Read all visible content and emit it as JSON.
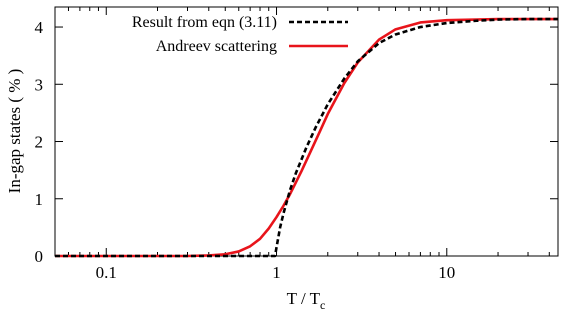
{
  "chart_data": {
    "type": "line",
    "xlabel": "T / T",
    "xlabel_sub": "c",
    "ylabel": "In-gap states ( % )",
    "x_scale": "log",
    "xlim": [
      0.05,
      45
    ],
    "ylim": [
      0,
      4.35
    ],
    "x_ticks": [
      0.1,
      1,
      10
    ],
    "x_tick_labels": [
      "0.1",
      "1",
      "10"
    ],
    "y_ticks": [
      0,
      1,
      2,
      3,
      4
    ],
    "y_tick_labels": [
      "0",
      "1",
      "2",
      "3",
      "4"
    ],
    "legend_position": "top-left",
    "series": [
      {
        "name": "Result from eqn (3.11)",
        "color": "#000000",
        "style": "dashed",
        "x": [
          0.05,
          0.95,
          0.98,
          1.0,
          1.05,
          1.1,
          1.2,
          1.3,
          1.5,
          1.7,
          2.0,
          2.5,
          3.0,
          4.0,
          5.0,
          7.0,
          10.0,
          15.0,
          20.0,
          30.0,
          45.0
        ],
        "y": [
          0,
          0,
          0,
          0.15,
          0.5,
          0.75,
          1.15,
          1.45,
          1.9,
          2.25,
          2.65,
          3.1,
          3.4,
          3.72,
          3.87,
          4.0,
          4.07,
          4.11,
          4.13,
          4.14,
          4.14
        ]
      },
      {
        "name": "Andreev scattering",
        "color": "#e8141b",
        "style": "solid",
        "x": [
          0.05,
          0.3,
          0.4,
          0.5,
          0.6,
          0.7,
          0.8,
          0.9,
          1.0,
          1.1,
          1.2,
          1.4,
          1.6,
          1.8,
          2.0,
          2.5,
          3.0,
          4.0,
          5.0,
          7.0,
          10.0,
          15.0,
          20.0,
          30.0,
          45.0
        ],
        "y": [
          0,
          0,
          0.01,
          0.03,
          0.08,
          0.17,
          0.3,
          0.48,
          0.68,
          0.88,
          1.08,
          1.48,
          1.85,
          2.18,
          2.48,
          3.02,
          3.38,
          3.78,
          3.96,
          4.08,
          4.12,
          4.13,
          4.14,
          4.14,
          4.14
        ]
      }
    ]
  }
}
